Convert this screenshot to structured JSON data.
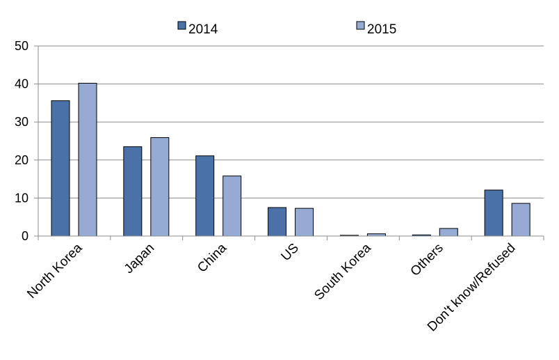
{
  "chart_data": {
    "type": "bar",
    "title": "",
    "xlabel": "",
    "ylabel": "",
    "categories": [
      "North Korea",
      "Japan",
      "China",
      "US",
      "South Korea",
      "Others",
      "Don't know/Refused"
    ],
    "series": [
      {
        "name": "2014",
        "color": "#4a72a8",
        "values": [
          35.6,
          23.5,
          21.1,
          7.5,
          0.2,
          0.3,
          12.1
        ]
      },
      {
        "name": "2015",
        "color": "#95abd4",
        "values": [
          40.2,
          25.9,
          15.8,
          7.3,
          0.6,
          2.0,
          8.6
        ]
      }
    ],
    "ylim": [
      0,
      50
    ],
    "yticks": [
      0,
      10,
      20,
      30,
      40,
      50
    ],
    "grid": true,
    "legend_position": "top"
  }
}
